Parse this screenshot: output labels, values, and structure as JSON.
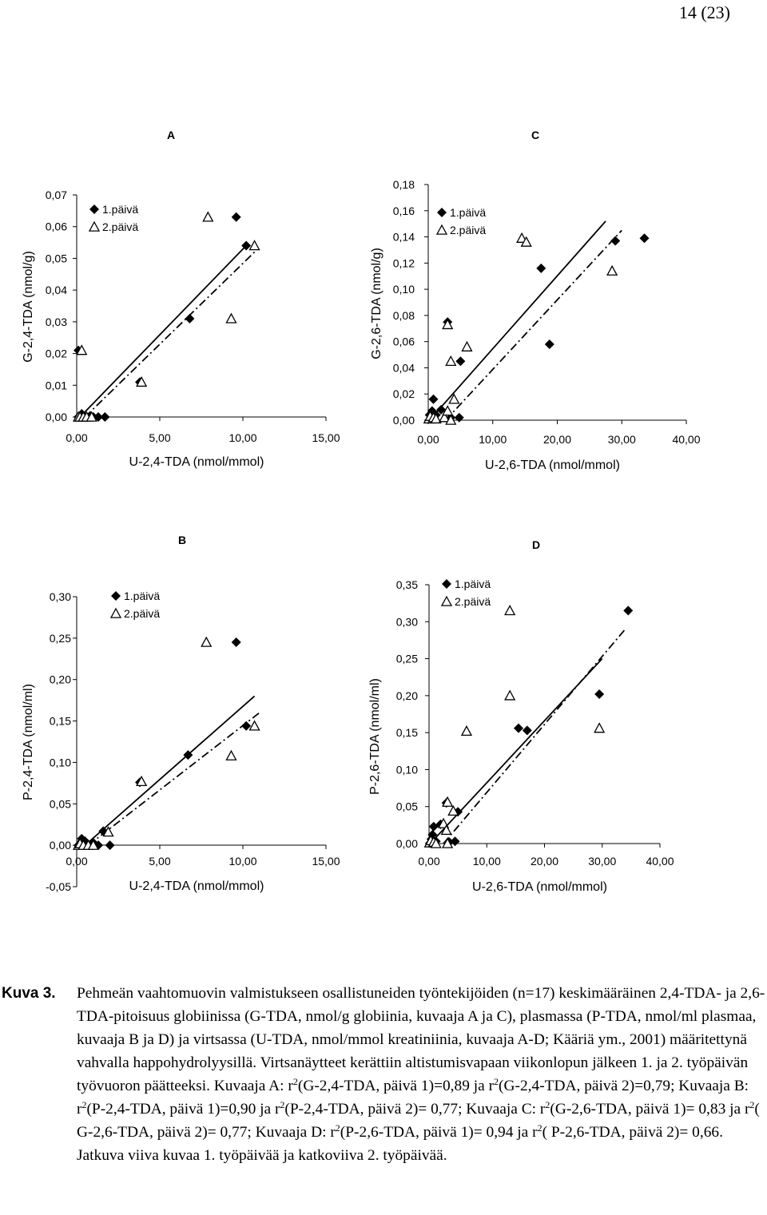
{
  "page_number": "14 (23)",
  "chart_data": [
    {
      "id": "A",
      "type": "scatter",
      "panel_label": "A",
      "xlabel": "U-2,4-TDA (nmol/mmol)",
      "ylabel": "G-2,4-TDA (nmol/g)",
      "xlim": [
        0,
        15
      ],
      "ylim": [
        0,
        0.07
      ],
      "xticks": [
        "0,00",
        "5,00",
        "10,00",
        "15,00"
      ],
      "yticks": [
        "0,00",
        "0,01",
        "0,02",
        "0,03",
        "0,04",
        "0,05",
        "0,06",
        "0,07"
      ],
      "legend": [
        "1.päivä",
        "2.päivä"
      ],
      "legend_position": "top-left",
      "series": [
        {
          "name": "1.päivä",
          "marker": "diamond",
          "line": "solid",
          "trend": [
            [
              0.2,
              0.0
            ],
            [
              10.2,
              0.054
            ]
          ],
          "points": [
            [
              0.1,
              0.0
            ],
            [
              0.2,
              0.0
            ],
            [
              0.3,
              0.0
            ],
            [
              0.4,
              0.0
            ],
            [
              0.5,
              0.0
            ],
            [
              0.6,
              0.0
            ],
            [
              0.8,
              0.0
            ],
            [
              1.0,
              0.0
            ],
            [
              1.3,
              0.0
            ],
            [
              1.7,
              0.0
            ],
            [
              0.1,
              0.021
            ],
            [
              0.3,
              0.001
            ],
            [
              3.8,
              0.011
            ],
            [
              6.8,
              0.031
            ],
            [
              9.6,
              0.063
            ],
            [
              10.2,
              0.054
            ]
          ]
        },
        {
          "name": "2.päivä",
          "marker": "triangle",
          "line": "dashdot",
          "trend": [
            [
              0.5,
              0.0
            ],
            [
              10.9,
              0.053
            ]
          ],
          "points": [
            [
              0.1,
              0.0
            ],
            [
              0.2,
              0.0
            ],
            [
              0.4,
              0.0
            ],
            [
              0.6,
              0.0
            ],
            [
              0.9,
              0.0
            ],
            [
              0.3,
              0.021
            ],
            [
              3.9,
              0.011
            ],
            [
              7.9,
              0.063
            ],
            [
              9.3,
              0.031
            ],
            [
              10.7,
              0.054
            ]
          ]
        }
      ]
    },
    {
      "id": "C",
      "type": "scatter",
      "panel_label": "C",
      "xlabel": "U-2,6-TDA (nmol/mmol)",
      "ylabel": "G-2,6-TDA (nmol/g)",
      "xlim": [
        0,
        40
      ],
      "ylim": [
        0,
        0.18
      ],
      "xticks": [
        "0,00",
        "10,00",
        "20,00",
        "30,00",
        "40,00"
      ],
      "yticks": [
        "0,00",
        "0,02",
        "0,04",
        "0,06",
        "0,08",
        "0,10",
        "0,12",
        "0,14",
        "0,16",
        "0,18"
      ],
      "legend": [
        "1.päivä",
        "2.päivä"
      ],
      "legend_position": "top-left",
      "series": [
        {
          "name": "1.päivä",
          "marker": "diamond",
          "line": "solid",
          "trend": [
            [
              0.2,
              0.0
            ],
            [
              27.5,
              0.152
            ]
          ],
          "points": [
            [
              0.2,
              0.004
            ],
            [
              0.4,
              0.001
            ],
            [
              0.6,
              0.007
            ],
            [
              0.8,
              0.016
            ],
            [
              1.2,
              0.004
            ],
            [
              2.0,
              0.008
            ],
            [
              3.5,
              0.002
            ],
            [
              4.8,
              0.002
            ],
            [
              3.0,
              0.075
            ],
            [
              5.0,
              0.045
            ],
            [
              17.5,
              0.116
            ],
            [
              18.8,
              0.058
            ],
            [
              29.0,
              0.137
            ],
            [
              33.5,
              0.139
            ]
          ]
        },
        {
          "name": "2.päivä",
          "marker": "triangle",
          "line": "dashdot",
          "trend": [
            [
              2.7,
              0.0
            ],
            [
              30.0,
              0.145
            ]
          ],
          "points": [
            [
              0.1,
              0.001
            ],
            [
              0.3,
              0.003
            ],
            [
              0.8,
              0.002
            ],
            [
              1.2,
              0.001
            ],
            [
              2.5,
              0.002
            ],
            [
              3.0,
              0.007
            ],
            [
              3.5,
              0.0
            ],
            [
              4.0,
              0.016
            ],
            [
              3.0,
              0.073
            ],
            [
              3.5,
              0.045
            ],
            [
              6.0,
              0.056
            ],
            [
              14.5,
              0.139
            ],
            [
              15.2,
              0.136
            ],
            [
              28.5,
              0.114
            ]
          ]
        }
      ]
    },
    {
      "id": "B",
      "type": "scatter",
      "panel_label": "B",
      "xlabel": "U-2,4-TDA (nmol/mmol)",
      "ylabel": "P-2,4-TDA (nmol/ml)",
      "xlim": [
        0,
        15
      ],
      "ylim": [
        -0.05,
        0.3
      ],
      "xticks": [
        "0,00",
        "5,00",
        "10,00",
        "15,00"
      ],
      "yticks": [
        "-0,05",
        "0,00",
        "0,05",
        "0,10",
        "0,15",
        "0,20",
        "0,25",
        "0,30"
      ],
      "legend": [
        "1.päivä",
        "2.päivä"
      ],
      "legend_position": "top-left",
      "series": [
        {
          "name": "1.päivä",
          "marker": "diamond",
          "line": "solid",
          "trend": [
            [
              0.5,
              0.0
            ],
            [
              10.7,
              0.18
            ]
          ],
          "points": [
            [
              0.1,
              0.0
            ],
            [
              0.2,
              0.0
            ],
            [
              0.3,
              0.008
            ],
            [
              0.4,
              0.0
            ],
            [
              0.5,
              0.005
            ],
            [
              0.6,
              0.0
            ],
            [
              0.8,
              0.0
            ],
            [
              1.0,
              0.003
            ],
            [
              1.3,
              0.0
            ],
            [
              1.6,
              0.017
            ],
            [
              2.0,
              0.0
            ],
            [
              3.8,
              0.076
            ],
            [
              6.7,
              0.109
            ],
            [
              9.6,
              0.245
            ],
            [
              10.2,
              0.144
            ]
          ]
        },
        {
          "name": "2.päivä",
          "marker": "triangle",
          "line": "dashdot",
          "trend": [
            [
              0.7,
              0.0
            ],
            [
              11.0,
              0.16
            ]
          ],
          "points": [
            [
              0.1,
              0.0
            ],
            [
              0.2,
              0.002
            ],
            [
              0.4,
              0.0
            ],
            [
              0.7,
              0.0
            ],
            [
              1.0,
              0.0
            ],
            [
              1.9,
              0.016
            ],
            [
              3.9,
              0.077
            ],
            [
              7.8,
              0.245
            ],
            [
              9.3,
              0.108
            ],
            [
              10.7,
              0.144
            ]
          ]
        }
      ]
    },
    {
      "id": "D",
      "type": "scatter",
      "panel_label": "D",
      "xlabel": "U-2,6-TDA (nmol/mmol)",
      "ylabel": "P-2,6-TDA (nmol/ml)",
      "xlim": [
        0,
        40
      ],
      "ylim": [
        0,
        0.35
      ],
      "xticks": [
        "0,00",
        "10,00",
        "20,00",
        "30,00",
        "40,00"
      ],
      "yticks": [
        "0,00",
        "0,05",
        "0,10",
        "0,15",
        "0,20",
        "0,25",
        "0,30",
        "0,35"
      ],
      "legend": [
        "1.päivä",
        "2.päivä"
      ],
      "legend_position": "top-left",
      "series": [
        {
          "name": "1.päivä",
          "marker": "diamond",
          "line": "solid",
          "trend": [
            [
              0.2,
              0.0
            ],
            [
              30.0,
              0.25
            ]
          ],
          "points": [
            [
              0.2,
              0.001
            ],
            [
              0.4,
              0.006
            ],
            [
              0.6,
              0.012
            ],
            [
              0.8,
              0.023
            ],
            [
              1.2,
              0.003
            ],
            [
              2.0,
              0.026
            ],
            [
              3.5,
              0.002
            ],
            [
              4.5,
              0.003
            ],
            [
              5.0,
              0.043
            ],
            [
              3.0,
              0.055
            ],
            [
              15.5,
              0.156
            ],
            [
              17.0,
              0.153
            ],
            [
              29.5,
              0.202
            ],
            [
              34.5,
              0.315
            ]
          ]
        },
        {
          "name": "2.päivä",
          "marker": "triangle",
          "line": "dashdot",
          "trend": [
            [
              2.5,
              0.0
            ],
            [
              34.0,
              0.29
            ]
          ],
          "points": [
            [
              0.1,
              0.001
            ],
            [
              0.3,
              0.004
            ],
            [
              0.8,
              0.002
            ],
            [
              1.2,
              0.0
            ],
            [
              2.5,
              0.027
            ],
            [
              3.0,
              0.018
            ],
            [
              3.2,
              0.0
            ],
            [
              4.2,
              0.044
            ],
            [
              3.2,
              0.056
            ],
            [
              6.5,
              0.152
            ],
            [
              14.0,
              0.2
            ],
            [
              14.0,
              0.315
            ],
            [
              29.5,
              0.156
            ]
          ]
        }
      ]
    }
  ],
  "caption": {
    "label": "Kuva 3.",
    "text": "Pehmeän vaahtomuovin valmistukseen osallistuneiden työntekijöiden (n=17) keskimääräinen 2,4-TDA- ja 2,6-TDA-pitoisuus globiinissa (G-TDA, nmol/g globiinia, kuvaaja A ja C), plasmassa (P-TDA, nmol/ml plasmaa, kuvaaja B ja D) ja virtsassa (U-TDA, nmol/mmol kreatiniinia, kuvaaja A-D; Kääriä ym., 2001) määritettynä vahvalla happohydrolyysillä. Virtsanäytteet kerättiin altistumisvapaan viikonlopun jälkeen 1. ja 2. työpäivän työvuoron päätteeksi.",
    "r2_pieces": [
      "Kuvaaja A: r",
      "2",
      "(G-2,4-TDA, päivä 1)=0,89 ja r",
      "2",
      "(G-2,4-TDA, päivä 2)=0,79; Kuvaaja B: r",
      "2",
      "(P-2,4-TDA, päivä 1)=0,90 ja r",
      "2",
      "(P-2,4-TDA, päivä 2)= 0,77; Kuvaaja C: r",
      "2",
      "(G-2,6-TDA, päivä 1)= 0,83 ja r",
      "2",
      "( G-2,6-TDA, päivä 2)= 0,77; Kuvaaja D: r",
      "2",
      "(P-2,6-TDA, päivä 1)= 0,94 ja r",
      "2",
      "( P-2,6-TDA, päivä 2)= 0,66. Jatkuva viiva kuvaa 1. työpäivää ja katkoviiva 2. työpäivää."
    ]
  }
}
